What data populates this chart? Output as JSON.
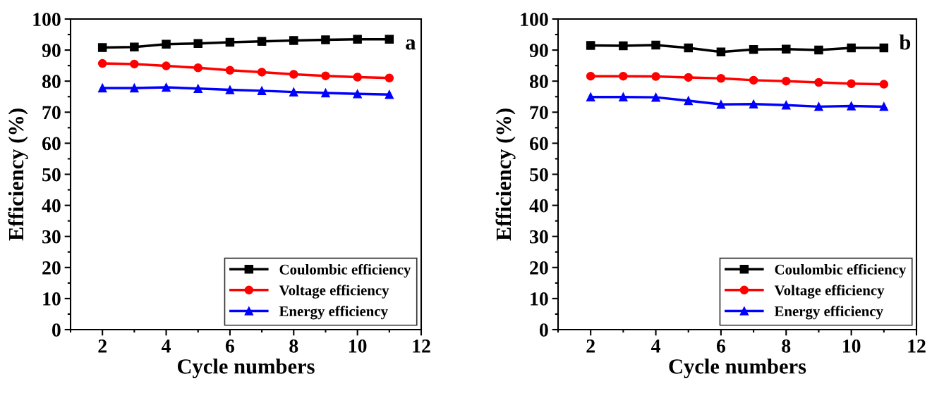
{
  "chart_data": [
    {
      "type": "line",
      "xlabel": "Cycle numbers",
      "ylabel": "Efficiency (%)",
      "annotations": [
        "a"
      ],
      "x": [
        2,
        3,
        4,
        5,
        6,
        7,
        8,
        9,
        10,
        11
      ],
      "xlim": [
        1,
        12
      ],
      "xticks": [
        2,
        4,
        6,
        8,
        10,
        12
      ],
      "ylim": [
        0,
        100
      ],
      "yticks": [
        0,
        10,
        20,
        30,
        40,
        50,
        60,
        70,
        80,
        90,
        100
      ],
      "legend": "bottom right",
      "grid": false,
      "line_style": "solid",
      "series": [
        {
          "name": "Coulombic efficiency",
          "color": "#000000",
          "marker": "square",
          "values": [
            90.8,
            91.0,
            91.9,
            92.1,
            92.5,
            92.8,
            93.1,
            93.3,
            93.5,
            93.5
          ]
        },
        {
          "name": "Voltage efficiency",
          "color": "#ff0000",
          "marker": "circle",
          "values": [
            85.7,
            85.5,
            84.9,
            84.3,
            83.5,
            82.9,
            82.2,
            81.7,
            81.3,
            81.0
          ]
        },
        {
          "name": "Energy efficiency",
          "color": "#0000ff",
          "marker": "triangle",
          "values": [
            77.8,
            77.8,
            78.0,
            77.6,
            77.2,
            76.9,
            76.5,
            76.2,
            75.9,
            75.7
          ]
        }
      ]
    },
    {
      "type": "line",
      "xlabel": "Cycle numbers",
      "ylabel": "Efficiency (%)",
      "annotations": [
        "b"
      ],
      "x": [
        2,
        3,
        4,
        5,
        6,
        7,
        8,
        9,
        10,
        11
      ],
      "xlim": [
        1,
        12
      ],
      "xticks": [
        2,
        4,
        6,
        8,
        10,
        12
      ],
      "ylim": [
        0,
        100
      ],
      "yticks": [
        0,
        10,
        20,
        30,
        40,
        50,
        60,
        70,
        80,
        90,
        100
      ],
      "legend": "bottom right",
      "grid": false,
      "line_style": "solid",
      "series": [
        {
          "name": "Coulombic efficiency",
          "color": "#000000",
          "marker": "square",
          "values": [
            91.5,
            91.4,
            91.6,
            90.7,
            89.4,
            90.2,
            90.3,
            90.0,
            90.7,
            90.7
          ]
        },
        {
          "name": "Voltage efficiency",
          "color": "#ff0000",
          "marker": "circle",
          "values": [
            81.6,
            81.6,
            81.5,
            81.2,
            80.9,
            80.3,
            80.0,
            79.6,
            79.2,
            79.0
          ]
        },
        {
          "name": "Energy efficiency",
          "color": "#0000ff",
          "marker": "triangle",
          "values": [
            74.9,
            74.9,
            74.8,
            73.7,
            72.5,
            72.6,
            72.3,
            71.8,
            72.0,
            71.8
          ]
        }
      ]
    }
  ]
}
